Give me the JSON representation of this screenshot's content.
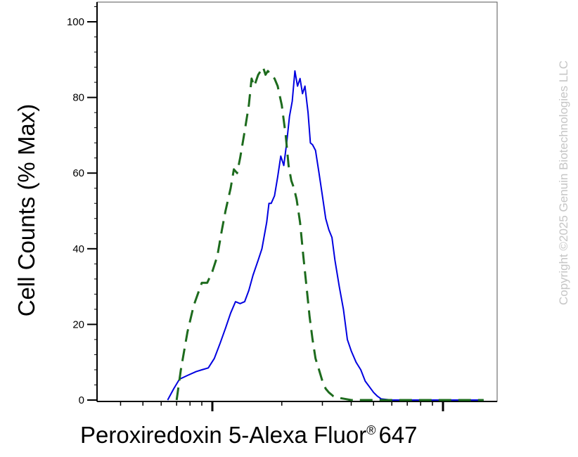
{
  "chart_data": {
    "type": "line",
    "xlabel_main": "Peroxiredoxin 5-Alexa Fluor",
    "xlabel_mark": "®",
    "xlabel_tail": "647",
    "ylabel": "Cell Counts (% Max)",
    "ylim": [
      0,
      105
    ],
    "yticks": [
      "0",
      "20",
      "40",
      "60",
      "80",
      "100"
    ],
    "xscale": "log",
    "grid": false,
    "series": [
      {
        "style": "solid",
        "color": "#0000e0",
        "points": [
          [
            0.64,
            0
          ],
          [
            0.68,
            3
          ],
          [
            0.72,
            5.5
          ],
          [
            0.78,
            6.5
          ],
          [
            0.85,
            7.5
          ],
          [
            0.9,
            8
          ],
          [
            0.96,
            8.5
          ],
          [
            1.02,
            11
          ],
          [
            1.08,
            15
          ],
          [
            1.14,
            19
          ],
          [
            1.2,
            23
          ],
          [
            1.26,
            26
          ],
          [
            1.32,
            25.5
          ],
          [
            1.38,
            26
          ],
          [
            1.44,
            29
          ],
          [
            1.5,
            33
          ],
          [
            1.58,
            37
          ],
          [
            1.64,
            40
          ],
          [
            1.72,
            47
          ],
          [
            1.76,
            52
          ],
          [
            1.8,
            52
          ],
          [
            1.86,
            54
          ],
          [
            1.92,
            59
          ],
          [
            1.98,
            64.5
          ],
          [
            2.04,
            62
          ],
          [
            2.1,
            68
          ],
          [
            2.16,
            75
          ],
          [
            2.22,
            79
          ],
          [
            2.28,
            87
          ],
          [
            2.34,
            83
          ],
          [
            2.4,
            85
          ],
          [
            2.46,
            81
          ],
          [
            2.52,
            83
          ],
          [
            2.6,
            76
          ],
          [
            2.66,
            68
          ],
          [
            2.72,
            67.5
          ],
          [
            2.8,
            66
          ],
          [
            2.9,
            60
          ],
          [
            3.0,
            54
          ],
          [
            3.1,
            48
          ],
          [
            3.2,
            45
          ],
          [
            3.3,
            43
          ],
          [
            3.4,
            37
          ],
          [
            3.55,
            30
          ],
          [
            3.7,
            24
          ],
          [
            3.85,
            16
          ],
          [
            4.0,
            13
          ],
          [
            4.2,
            10
          ],
          [
            4.4,
            8
          ],
          [
            4.6,
            5
          ],
          [
            4.8,
            3.5
          ],
          [
            5.0,
            2
          ],
          [
            5.2,
            1
          ],
          [
            5.4,
            0.3
          ],
          [
            6.0,
            0
          ],
          [
            10,
            0
          ],
          [
            15,
            0
          ]
        ]
      },
      {
        "style": "dashed",
        "color": "#1d6b1d",
        "points": [
          [
            0.7,
            0
          ],
          [
            0.73,
            8
          ],
          [
            0.78,
            18
          ],
          [
            0.83,
            25
          ],
          [
            0.9,
            31
          ],
          [
            0.95,
            31
          ],
          [
            1.0,
            34
          ],
          [
            1.05,
            38
          ],
          [
            1.1,
            45
          ],
          [
            1.14,
            50
          ],
          [
            1.2,
            56
          ],
          [
            1.24,
            61
          ],
          [
            1.28,
            60
          ],
          [
            1.32,
            64
          ],
          [
            1.38,
            71
          ],
          [
            1.44,
            78
          ],
          [
            1.48,
            85
          ],
          [
            1.52,
            83
          ],
          [
            1.58,
            86
          ],
          [
            1.62,
            87
          ],
          [
            1.66,
            88
          ],
          [
            1.7,
            86
          ],
          [
            1.74,
            87
          ],
          [
            1.8,
            86
          ],
          [
            1.86,
            85
          ],
          [
            1.92,
            83
          ],
          [
            2.0,
            78
          ],
          [
            2.08,
            70
          ],
          [
            2.14,
            62
          ],
          [
            2.2,
            58
          ],
          [
            2.26,
            56
          ],
          [
            2.32,
            53
          ],
          [
            2.4,
            47
          ],
          [
            2.48,
            38
          ],
          [
            2.56,
            30
          ],
          [
            2.64,
            22
          ],
          [
            2.72,
            16
          ],
          [
            2.8,
            11
          ],
          [
            2.9,
            8
          ],
          [
            3.0,
            5
          ],
          [
            3.1,
            3
          ],
          [
            3.2,
            2
          ],
          [
            3.35,
            1
          ],
          [
            3.6,
            0.5
          ],
          [
            4.0,
            0
          ],
          [
            8,
            0
          ],
          [
            15,
            0
          ]
        ]
      }
    ]
  },
  "copyright": "Copyright ©2025 Genuin Biotechnologies LLC"
}
